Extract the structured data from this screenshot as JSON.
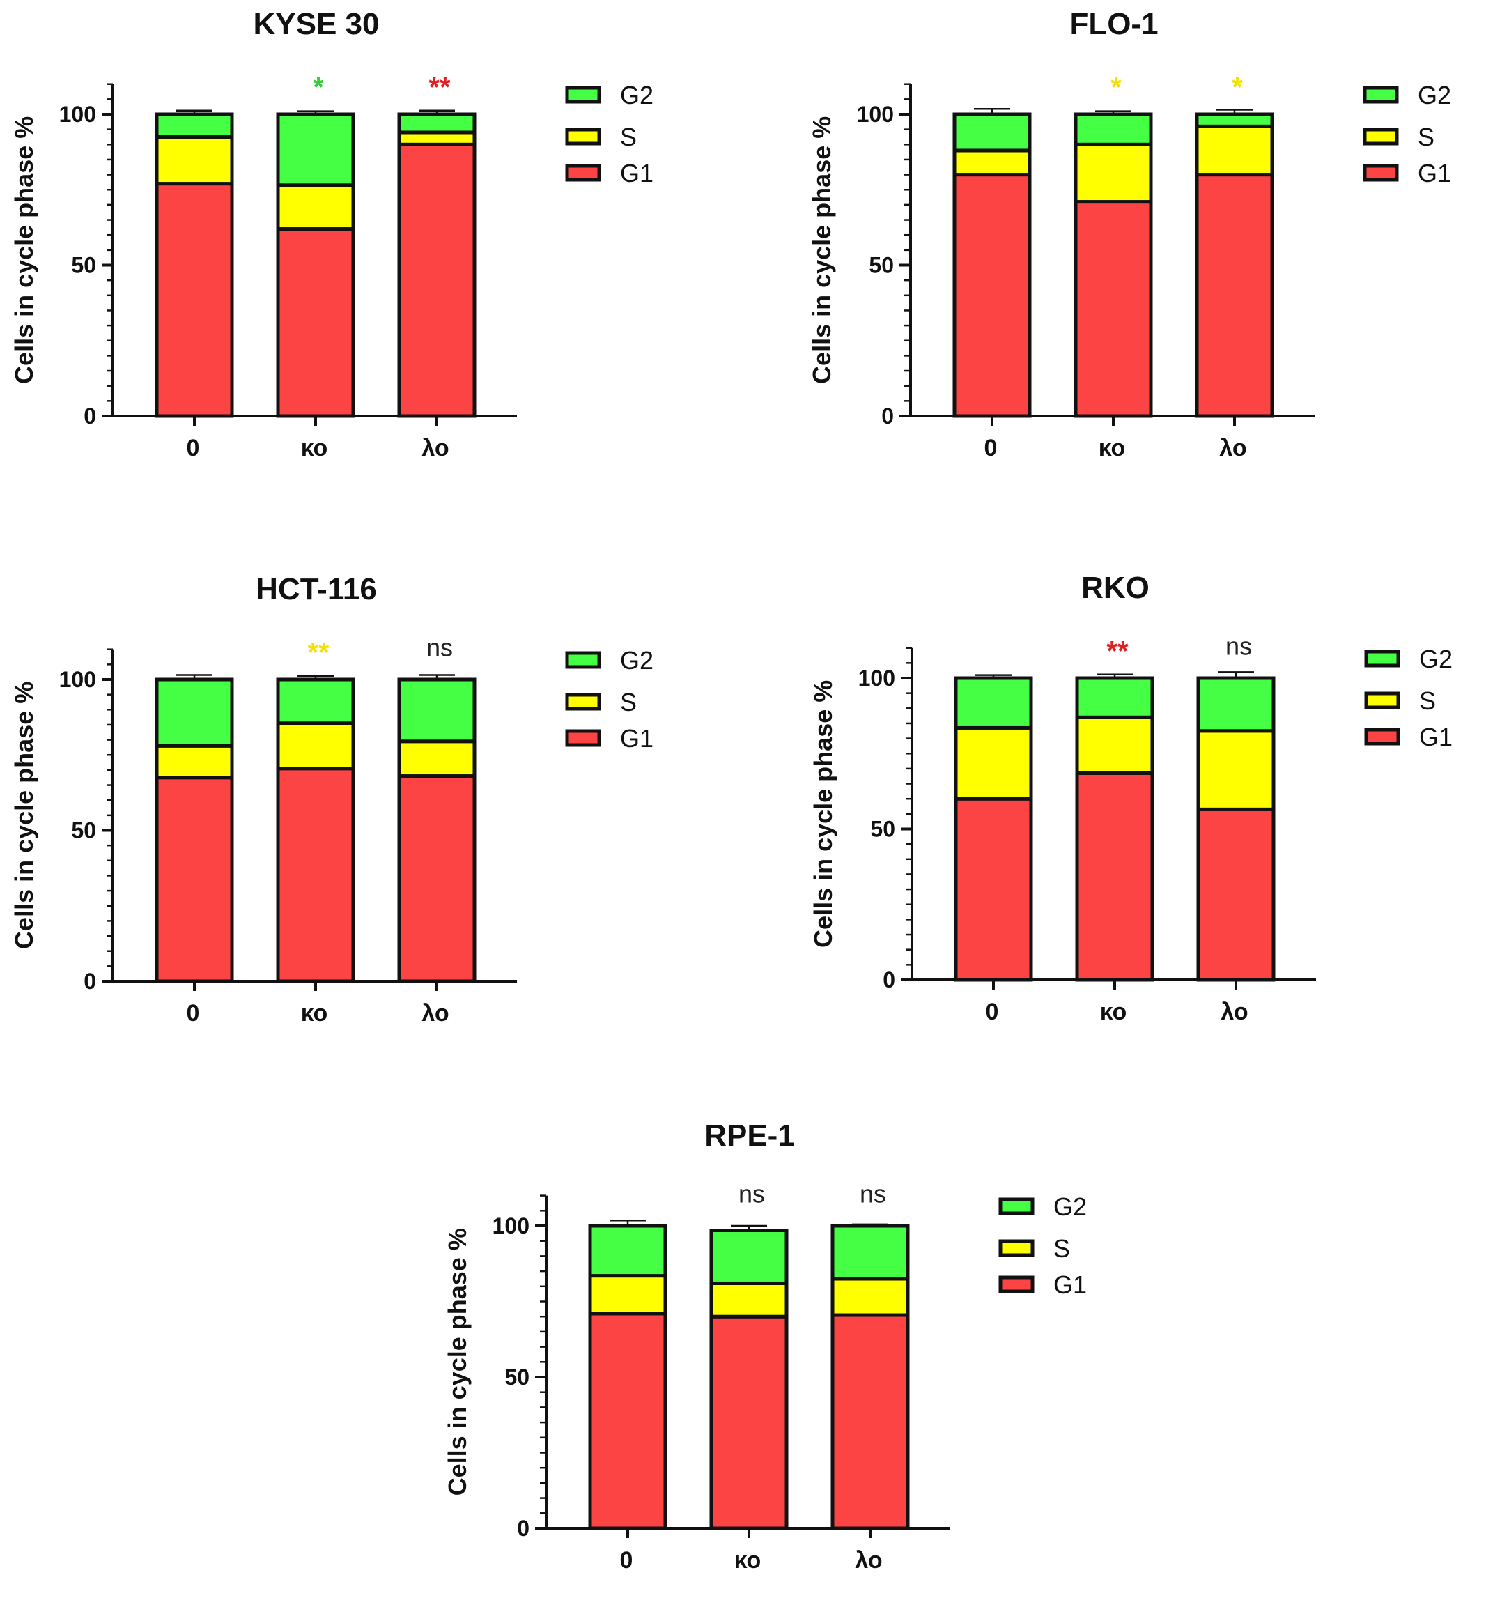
{
  "figure": {
    "phase_colors": {
      "G1": "#fd4444",
      "S": "#ffff00",
      "G2": "#44ff44"
    },
    "sig_colors": {
      "green": "#33cc33",
      "red": "#e02020",
      "yellow": "#f5e100",
      "black": "#222222"
    }
  },
  "chart_data": [
    {
      "type": "bar",
      "stacked": true,
      "title": "KYSE 30",
      "ylabel": "Cells in cycle phase %",
      "xlabel": "",
      "ylim": [
        0,
        110
      ],
      "yticks": [
        "0",
        "50",
        "100"
      ],
      "categories": [
        "0",
        "κο",
        "λο"
      ],
      "legend": [
        "G2",
        "S",
        "G1"
      ],
      "legend_position": "right",
      "series": [
        {
          "name": "G1",
          "values": [
            77,
            62,
            90
          ],
          "errors": [
            1.5,
            1.2,
            1.5
          ]
        },
        {
          "name": "S",
          "values": [
            15.5,
            14.5,
            4
          ],
          "errors": [
            1.5,
            1.5,
            1.5
          ]
        },
        {
          "name": "G2",
          "values": [
            7.5,
            23.5,
            6
          ],
          "errors": [
            1.2,
            1.0,
            1.2
          ]
        }
      ],
      "significance": [
        {
          "label": "",
          "color": "black"
        },
        {
          "label": "*",
          "color": "green"
        },
        {
          "label": "**",
          "color": "red"
        }
      ]
    },
    {
      "type": "bar",
      "stacked": true,
      "title": "FLO-1",
      "ylabel": "Cells in cycle phase %",
      "xlabel": "",
      "ylim": [
        0,
        110
      ],
      "yticks": [
        "0",
        "50",
        "100"
      ],
      "categories": [
        "0",
        "κο",
        "λο"
      ],
      "legend": [
        "G2",
        "S",
        "G1"
      ],
      "legend_position": "right",
      "series": [
        {
          "name": "G1",
          "values": [
            80,
            71,
            80
          ],
          "errors": [
            1.5,
            1.2,
            1.5
          ]
        },
        {
          "name": "S",
          "values": [
            8,
            19,
            16
          ],
          "errors": [
            1.5,
            1.2,
            1.0
          ]
        },
        {
          "name": "G2",
          "values": [
            12,
            10,
            4
          ],
          "errors": [
            1.8,
            1.0,
            1.5
          ]
        }
      ],
      "significance": [
        {
          "label": "",
          "color": "black"
        },
        {
          "label": "*",
          "color": "yellow"
        },
        {
          "label": "*",
          "color": "yellow"
        }
      ]
    },
    {
      "type": "bar",
      "stacked": true,
      "title": "HCT-116",
      "ylabel": "Cells in cycle phase %",
      "xlabel": "",
      "ylim": [
        0,
        110
      ],
      "yticks": [
        "0",
        "50",
        "100"
      ],
      "categories": [
        "0",
        "κο",
        "λο"
      ],
      "legend": [
        "G2",
        "S",
        "G1"
      ],
      "legend_position": "right",
      "series": [
        {
          "name": "G1",
          "values": [
            67.5,
            70.5,
            68
          ],
          "errors": [
            1.5,
            1.2,
            1.5
          ]
        },
        {
          "name": "S",
          "values": [
            10.5,
            15,
            11.5
          ],
          "errors": [
            1.2,
            1.0,
            1.2
          ]
        },
        {
          "name": "G2",
          "values": [
            22,
            14.5,
            20.5
          ],
          "errors": [
            1.5,
            1.2,
            1.5
          ]
        }
      ],
      "significance": [
        {
          "label": "",
          "color": "black"
        },
        {
          "label": "**",
          "color": "yellow"
        },
        {
          "label": "ns",
          "color": "black"
        }
      ]
    },
    {
      "type": "bar",
      "stacked": true,
      "title": "RKO",
      "ylabel": "Cells in cycle phase %",
      "xlabel": "",
      "ylim": [
        0,
        110
      ],
      "yticks": [
        "0",
        "50",
        "100"
      ],
      "categories": [
        "0",
        "κο",
        "λο"
      ],
      "legend": [
        "G2",
        "S",
        "G1"
      ],
      "legend_position": "right",
      "series": [
        {
          "name": "G1",
          "values": [
            60,
            68.5,
            56.5
          ],
          "errors": [
            1.0,
            1.0,
            1.5
          ]
        },
        {
          "name": "S",
          "values": [
            23.5,
            18.5,
            26
          ],
          "errors": [
            1.5,
            1.5,
            1.5
          ]
        },
        {
          "name": "G2",
          "values": [
            16.5,
            13,
            17.5
          ],
          "errors": [
            1.0,
            1.2,
            2.0
          ]
        }
      ],
      "significance": [
        {
          "label": "",
          "color": "black"
        },
        {
          "label": "**",
          "color": "red"
        },
        {
          "label": "ns",
          "color": "black"
        }
      ]
    },
    {
      "type": "bar",
      "stacked": true,
      "title": "RPE-1",
      "ylabel": "Cells in cycle phase %",
      "xlabel": "",
      "ylim": [
        0,
        110
      ],
      "yticks": [
        "0",
        "50",
        "100"
      ],
      "categories": [
        "0",
        "κο",
        "λο"
      ],
      "legend": [
        "G2",
        "S",
        "G1"
      ],
      "legend_position": "right",
      "series": [
        {
          "name": "G1",
          "values": [
            71,
            70,
            70.5
          ],
          "errors": [
            1.5,
            1.5,
            1.0
          ]
        },
        {
          "name": "S",
          "values": [
            12.5,
            11,
            12
          ],
          "errors": [
            1.2,
            1.2,
            1.2
          ]
        },
        {
          "name": "G2",
          "values": [
            16.5,
            17.5,
            17.5
          ],
          "errors": [
            1.8,
            1.5,
            0.5
          ]
        }
      ],
      "significance": [
        {
          "label": "",
          "color": "black"
        },
        {
          "label": "ns",
          "color": "black"
        },
        {
          "label": "ns",
          "color": "black"
        }
      ]
    }
  ]
}
